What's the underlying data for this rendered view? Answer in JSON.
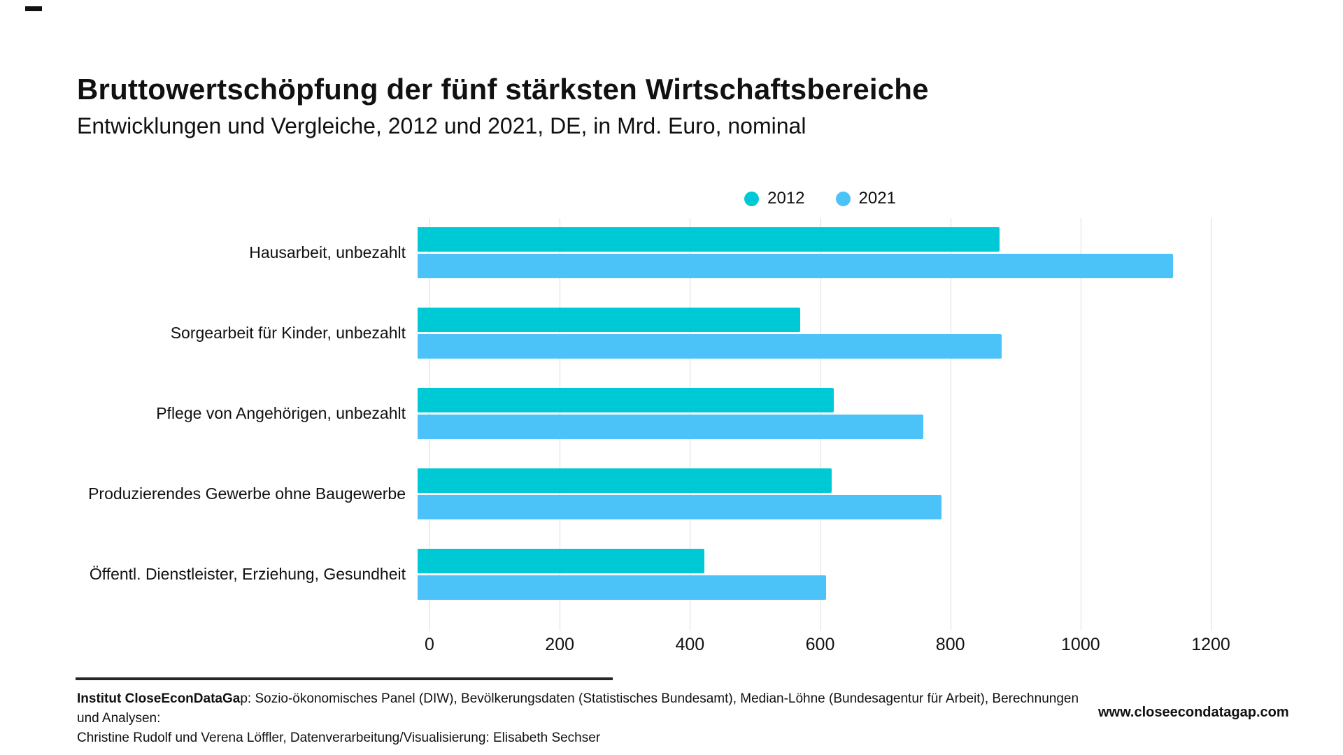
{
  "header": {
    "title": "Bruttowertschöpfung der fünf stärksten Wirtschaftsbereiche",
    "subtitle": "Entwicklungen und Vergleiche, 2012 und 2021, DE, in Mrd. Euro, nominal"
  },
  "colors": {
    "series_2012": "#00c9d6",
    "series_2021": "#4cc3f8",
    "gridline": "#dcdcdc",
    "text": "#111111"
  },
  "chart_data": {
    "type": "bar",
    "orientation": "horizontal",
    "title": "Bruttowertschöpfung der fünf stärksten Wirtschaftsbereiche",
    "subtitle": "Entwicklungen und Vergleiche, 2012 und 2021, DE, in Mrd. Euro, nominal",
    "categories": [
      "Hausarbeit, unbezahlt",
      "Sorgearbeit für Kinder, unbezahlt",
      "Pflege von Angehörigen, unbezahlt",
      "Produzierendes Gewerbe ohne Baugewerbe",
      "Öffentl. Dienstleister, Erziehung, Gesundheit"
    ],
    "series": [
      {
        "name": "2012",
        "color": "#00c9d6",
        "values": [
          894,
          588,
          639,
          636,
          440
        ]
      },
      {
        "name": "2021",
        "color": "#4cc3f8",
        "values": [
          1160,
          897,
          777,
          805,
          627
        ]
      }
    ],
    "xlim": [
      0,
      1200
    ],
    "x_ticks": [
      0,
      200,
      400,
      600,
      800,
      1000,
      1200
    ],
    "grid": true,
    "legend_position": "top-center",
    "value_unit": "Mrd. Euro"
  },
  "footer": {
    "source_bold": "Institut CloseEconDataGa",
    "source_rest": "p: Sozio-ökonomisches Panel (DIW), Bevölkerungsdaten (Statistisches Bundesamt), Median-Löhne (Bundesagentur für Arbeit), Berechnungen und Analysen:",
    "source_line2": "Christine Rudolf und Verena Löffler, Datenverarbeitung/Visualisierung: Elisabeth Sechser",
    "website": "www.closeecondatagap.com"
  }
}
